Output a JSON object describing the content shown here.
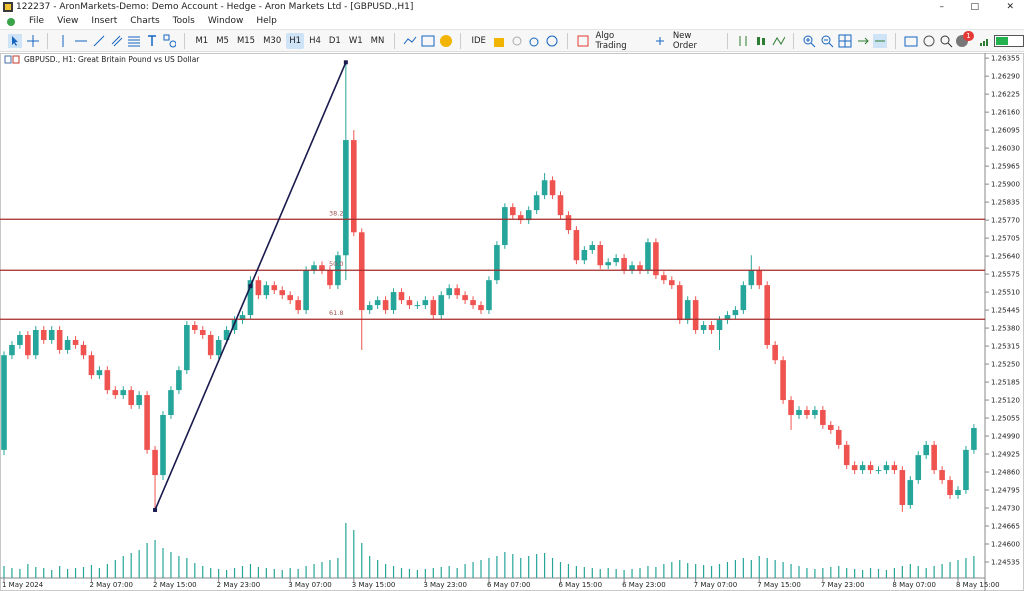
{
  "window": {
    "title": "122237 - AronMarkets-Demo: Demo Account - Hedge - Aron Markets Ltd - [GBPUSD.,H1]"
  },
  "menu": [
    "File",
    "View",
    "Insert",
    "Charts",
    "Tools",
    "Window",
    "Help"
  ],
  "toolbar": {
    "timeframes": [
      "M1",
      "M5",
      "M15",
      "M30",
      "H1",
      "H4",
      "D1",
      "W1",
      "MN"
    ],
    "ide": "IDE",
    "algo_trading": "Algo Trading",
    "new_order": "New Order",
    "badge": "1"
  },
  "chart_data": {
    "type": "candlestick",
    "title": "GBPUSD., H1:  Great Britain Pound vs US Dollar",
    "up_color": "#26a69a",
    "down_color": "#ef5350",
    "volume_color": "#26a69a",
    "ylim": [
      1.2447,
      1.2637
    ],
    "yticks": [
      {
        "value": 1.26355,
        "label": "1.26355"
      },
      {
        "value": 1.2629,
        "label": "1.26290"
      },
      {
        "value": 1.26225,
        "label": "1.26225"
      },
      {
        "value": 1.2616,
        "label": "1.26160"
      },
      {
        "value": 1.26095,
        "label": "1.26095"
      },
      {
        "value": 1.2603,
        "label": "1.26030"
      },
      {
        "value": 1.25965,
        "label": "1.25965"
      },
      {
        "value": 1.259,
        "label": "1.25900"
      },
      {
        "value": 1.25835,
        "label": "1.25835"
      },
      {
        "value": 1.2577,
        "label": "1.25770"
      },
      {
        "value": 1.25705,
        "label": "1.25705"
      },
      {
        "value": 1.2564,
        "label": "1.25640"
      },
      {
        "value": 1.25575,
        "label": "1.25575"
      },
      {
        "value": 1.2551,
        "label": "1.25510"
      },
      {
        "value": 1.25445,
        "label": "1.25445"
      },
      {
        "value": 1.2538,
        "label": "1.25380"
      },
      {
        "value": 1.25315,
        "label": "1.25315"
      },
      {
        "value": 1.2525,
        "label": "1.25250"
      },
      {
        "value": 1.25185,
        "label": "1.25185"
      },
      {
        "value": 1.2512,
        "label": "1.25120"
      },
      {
        "value": 1.25055,
        "label": "1.25055"
      },
      {
        "value": 1.2499,
        "label": "1.24990"
      },
      {
        "value": 1.24925,
        "label": "1.24925"
      },
      {
        "value": 1.2486,
        "label": "1.24860"
      },
      {
        "value": 1.24795,
        "label": "1.24795"
      },
      {
        "value": 1.2473,
        "label": "1.24730"
      },
      {
        "value": 1.24665,
        "label": "1.24665"
      },
      {
        "value": 1.246,
        "label": "1.24600"
      },
      {
        "value": 1.24535,
        "label": "1.24535"
      }
    ],
    "categories": [
      "1 May 2024",
      null,
      null,
      null,
      null,
      null,
      null,
      null,
      null,
      null,
      null,
      "2 May 07:00",
      null,
      null,
      null,
      null,
      null,
      null,
      null,
      "2 May 15:00",
      null,
      null,
      null,
      null,
      null,
      null,
      null,
      "2 May 23:00",
      null,
      null,
      null,
      null,
      null,
      null,
      null,
      null,
      "3 May 07:00",
      null,
      null,
      null,
      null,
      null,
      null,
      null,
      "3 May 15:00",
      null,
      null,
      null,
      null,
      null,
      null,
      null,
      null,
      "3 May 23:00",
      null,
      null,
      null,
      null,
      null,
      null,
      null,
      "6 May 07:00",
      null,
      null,
      null,
      null,
      null,
      null,
      null,
      null,
      "6 May 15:00",
      null,
      null,
      null,
      null,
      null,
      null,
      null,
      "6 May 23:00",
      null,
      null,
      null,
      null,
      null,
      null,
      null,
      null,
      "7 May 07:00",
      null,
      null,
      null,
      null,
      null,
      null,
      null,
      "7 May 15:00",
      null,
      null,
      null,
      null,
      null,
      null,
      null,
      "7 May 23:00",
      null,
      null,
      null,
      null,
      null,
      null,
      null,
      null,
      "8 May 07:00",
      null,
      null,
      null,
      null,
      null,
      null,
      null,
      "8 May 15:00",
      null,
      null
    ],
    "open": [
      1.2494,
      1.25282,
      1.25319,
      1.25355,
      1.25282,
      1.25373,
      1.25337,
      1.25373,
      1.25301,
      1.25337,
      1.25319,
      1.25282,
      1.2521,
      1.25228,
      1.25156,
      1.25138,
      1.25156,
      1.25102,
      1.25138,
      1.2494,
      1.24849,
      1.25066,
      1.25156,
      1.25228,
      1.25391,
      1.25373,
      1.25355,
      1.25282,
      1.25337,
      1.25373,
      1.25409,
      1.25427,
      1.25553,
      1.25499,
      1.25535,
      1.25517,
      1.25499,
      1.25481,
      1.25445,
      1.25589,
      1.25607,
      1.25589,
      1.25535,
      1.25643,
      1.26059,
      1.25726,
      1.25445,
      1.25463,
      1.25481,
      1.25445,
      1.2551,
      1.25481,
      1.25463,
      1.25463,
      1.25481,
      1.25427,
      1.25499,
      1.25524,
      1.25499,
      1.25481,
      1.25463,
      1.25445,
      1.25553,
      1.2568,
      1.25817,
      1.25788,
      1.2577,
      1.25806,
      1.2586,
      1.25914,
      1.2586,
      1.25788,
      1.25734,
      1.25625,
      1.25662,
      1.2568,
      1.25607,
      1.25618,
      1.25633,
      1.25589,
      1.25607,
      1.25589,
      1.2569,
      1.25571,
      1.25553,
      1.25535,
      1.25409,
      1.25481,
      1.25373,
      1.25391,
      1.25373,
      1.25409,
      1.25427,
      1.25445,
      1.25535,
      1.25589,
      1.25535,
      1.25319,
      1.25264,
      1.2512,
      1.25066,
      1.25084,
      1.25066,
      1.25084,
      1.2503,
      1.25012,
      1.24958,
      1.24885,
      1.24867,
      1.24885,
      1.24867,
      1.24867,
      1.24885,
      1.24867,
      1.24741,
      1.24831,
      1.24921,
      1.24958,
      1.24867,
      1.24831,
      1.24777,
      1.24795,
      1.2494
    ],
    "high": [
      1.25296,
      1.25333,
      1.25369,
      1.25369,
      1.25387,
      1.25387,
      1.25387,
      1.25387,
      1.25351,
      1.25351,
      1.25333,
      1.25296,
      1.25242,
      1.25242,
      1.2517,
      1.2517,
      1.2517,
      1.25152,
      1.25152,
      1.24954,
      1.2508,
      1.2517,
      1.25242,
      1.25405,
      1.25405,
      1.25387,
      1.25369,
      1.25351,
      1.25387,
      1.25423,
      1.25441,
      1.25567,
      1.25567,
      1.25549,
      1.25549,
      1.25531,
      1.25513,
      1.25495,
      1.25603,
      1.25621,
      1.25621,
      1.25603,
      1.25657,
      1.2634,
      1.26095,
      1.2574,
      1.25477,
      1.25495,
      1.25495,
      1.25524,
      1.25524,
      1.25495,
      1.25477,
      1.25495,
      1.25495,
      1.25513,
      1.25538,
      1.25538,
      1.25513,
      1.25495,
      1.25477,
      1.25567,
      1.25694,
      1.25831,
      1.25831,
      1.25802,
      1.2582,
      1.25874,
      1.2594,
      1.25928,
      1.25874,
      1.25802,
      1.25748,
      1.25676,
      1.25694,
      1.25694,
      1.25632,
      1.25647,
      1.25647,
      1.25621,
      1.25621,
      1.25704,
      1.25704,
      1.25585,
      1.25567,
      1.25549,
      1.25495,
      1.25495,
      1.25405,
      1.25405,
      1.25423,
      1.25441,
      1.25459,
      1.25549,
      1.25643,
      1.25603,
      1.25549,
      1.25333,
      1.25278,
      1.25134,
      1.25098,
      1.25098,
      1.25098,
      1.25098,
      1.25044,
      1.25026,
      1.24972,
      1.24899,
      1.24899,
      1.24899,
      1.24881,
      1.24899,
      1.24899,
      1.24881,
      1.24845,
      1.24935,
      1.24972,
      1.24972,
      1.24881,
      1.24845,
      1.24809,
      1.24954,
      1.25033
    ],
    "low": [
      1.24921,
      1.25268,
      1.25305,
      1.25268,
      1.25268,
      1.25323,
      1.25323,
      1.25287,
      1.25287,
      1.25305,
      1.25268,
      1.25196,
      1.25196,
      1.25142,
      1.25124,
      1.25124,
      1.25088,
      1.25088,
      1.24926,
      1.24723,
      1.24831,
      1.25052,
      1.25142,
      1.25214,
      1.25359,
      1.25341,
      1.25268,
      1.25268,
      1.25323,
      1.25359,
      1.25395,
      1.25413,
      1.25485,
      1.25485,
      1.25503,
      1.25485,
      1.25467,
      1.25431,
      1.25431,
      1.25575,
      1.25575,
      1.25521,
      1.25521,
      1.25553,
      1.25712,
      1.25301,
      1.25431,
      1.25449,
      1.25431,
      1.25431,
      1.25467,
      1.25449,
      1.25449,
      1.25449,
      1.25413,
      1.25413,
      1.25485,
      1.25485,
      1.25467,
      1.25449,
      1.25431,
      1.25431,
      1.25539,
      1.25666,
      1.25774,
      1.25756,
      1.25756,
      1.25792,
      1.25846,
      1.25846,
      1.25774,
      1.2572,
      1.25611,
      1.25611,
      1.25648,
      1.25593,
      1.25593,
      1.25604,
      1.25575,
      1.25575,
      1.25575,
      1.25575,
      1.25557,
      1.25539,
      1.25521,
      1.25395,
      1.25395,
      1.25359,
      1.25359,
      1.25359,
      1.25301,
      1.25395,
      1.25413,
      1.25431,
      1.25521,
      1.25521,
      1.25305,
      1.2525,
      1.25106,
      1.25012,
      1.25052,
      1.25052,
      1.25052,
      1.25016,
      1.24998,
      1.24944,
      1.24871,
      1.24853,
      1.24853,
      1.24853,
      1.24853,
      1.24853,
      1.24853,
      1.24716,
      1.24727,
      1.24817,
      1.24907,
      1.24853,
      1.24817,
      1.24763,
      1.24763,
      1.24781,
      1.24926
    ],
    "close": [
      1.25282,
      1.25319,
      1.25355,
      1.25282,
      1.25373,
      1.25337,
      1.25373,
      1.25301,
      1.25337,
      1.25319,
      1.25282,
      1.2521,
      1.25228,
      1.25156,
      1.25138,
      1.25156,
      1.25102,
      1.25138,
      1.2494,
      1.24849,
      1.25066,
      1.25156,
      1.25228,
      1.25391,
      1.25373,
      1.25355,
      1.25282,
      1.25337,
      1.25373,
      1.25409,
      1.25427,
      1.25553,
      1.25499,
      1.25535,
      1.25517,
      1.25499,
      1.25481,
      1.25445,
      1.25589,
      1.25607,
      1.25589,
      1.25535,
      1.25643,
      1.26059,
      1.25726,
      1.25445,
      1.25463,
      1.25481,
      1.25445,
      1.2551,
      1.25481,
      1.25463,
      1.25463,
      1.25481,
      1.25427,
      1.25499,
      1.25524,
      1.25499,
      1.25481,
      1.25463,
      1.25445,
      1.25553,
      1.2568,
      1.25817,
      1.25788,
      1.2577,
      1.25806,
      1.2586,
      1.25914,
      1.2586,
      1.25788,
      1.25734,
      1.25625,
      1.25662,
      1.2568,
      1.25607,
      1.25618,
      1.25633,
      1.25589,
      1.25607,
      1.25589,
      1.2569,
      1.25571,
      1.25553,
      1.25535,
      1.25409,
      1.25481,
      1.25373,
      1.25391,
      1.25373,
      1.25409,
      1.25427,
      1.25445,
      1.25535,
      1.25589,
      1.25535,
      1.25319,
      1.25264,
      1.2512,
      1.25066,
      1.25084,
      1.25066,
      1.25084,
      1.2503,
      1.25012,
      1.24958,
      1.24885,
      1.24867,
      1.24885,
      1.24867,
      1.24867,
      1.24885,
      1.24867,
      1.24741,
      1.24831,
      1.24921,
      1.24958,
      1.24867,
      1.24831,
      1.24777,
      1.24795,
      1.2494,
      1.25019
    ],
    "volume": [
      12,
      10,
      9,
      14,
      11,
      10,
      8,
      12,
      9,
      10,
      11,
      13,
      10,
      14,
      18,
      22,
      25,
      28,
      35,
      38,
      30,
      26,
      22,
      20,
      15,
      12,
      10,
      9,
      8,
      10,
      12,
      14,
      11,
      10,
      9,
      8,
      10,
      9,
      12,
      14,
      16,
      18,
      20,
      55,
      48,
      35,
      22,
      18,
      14,
      12,
      10,
      9,
      8,
      9,
      10,
      11,
      12,
      10,
      14,
      16,
      18,
      20,
      22,
      26,
      24,
      20,
      22,
      24,
      25,
      20,
      16,
      14,
      12,
      11,
      10,
      9,
      10,
      9,
      8,
      9,
      10,
      12,
      11,
      14,
      16,
      18,
      15,
      14,
      13,
      12,
      14,
      16,
      18,
      20,
      18,
      22,
      20,
      18,
      16,
      14,
      12,
      10,
      9,
      10,
      11,
      12,
      10,
      9,
      8,
      10,
      9,
      8,
      10,
      12,
      14,
      12,
      10,
      12,
      14,
      16,
      18,
      20,
      22
    ],
    "fib_color": "#a52a2a",
    "fib_levels": [
      {
        "label": "38.2",
        "value": 1.25773
      },
      {
        "label": "50.0",
        "value": 1.25589
      },
      {
        "label": "61.8",
        "value": 1.25412
      }
    ],
    "trendline_color": "#1a1a4e"
  }
}
